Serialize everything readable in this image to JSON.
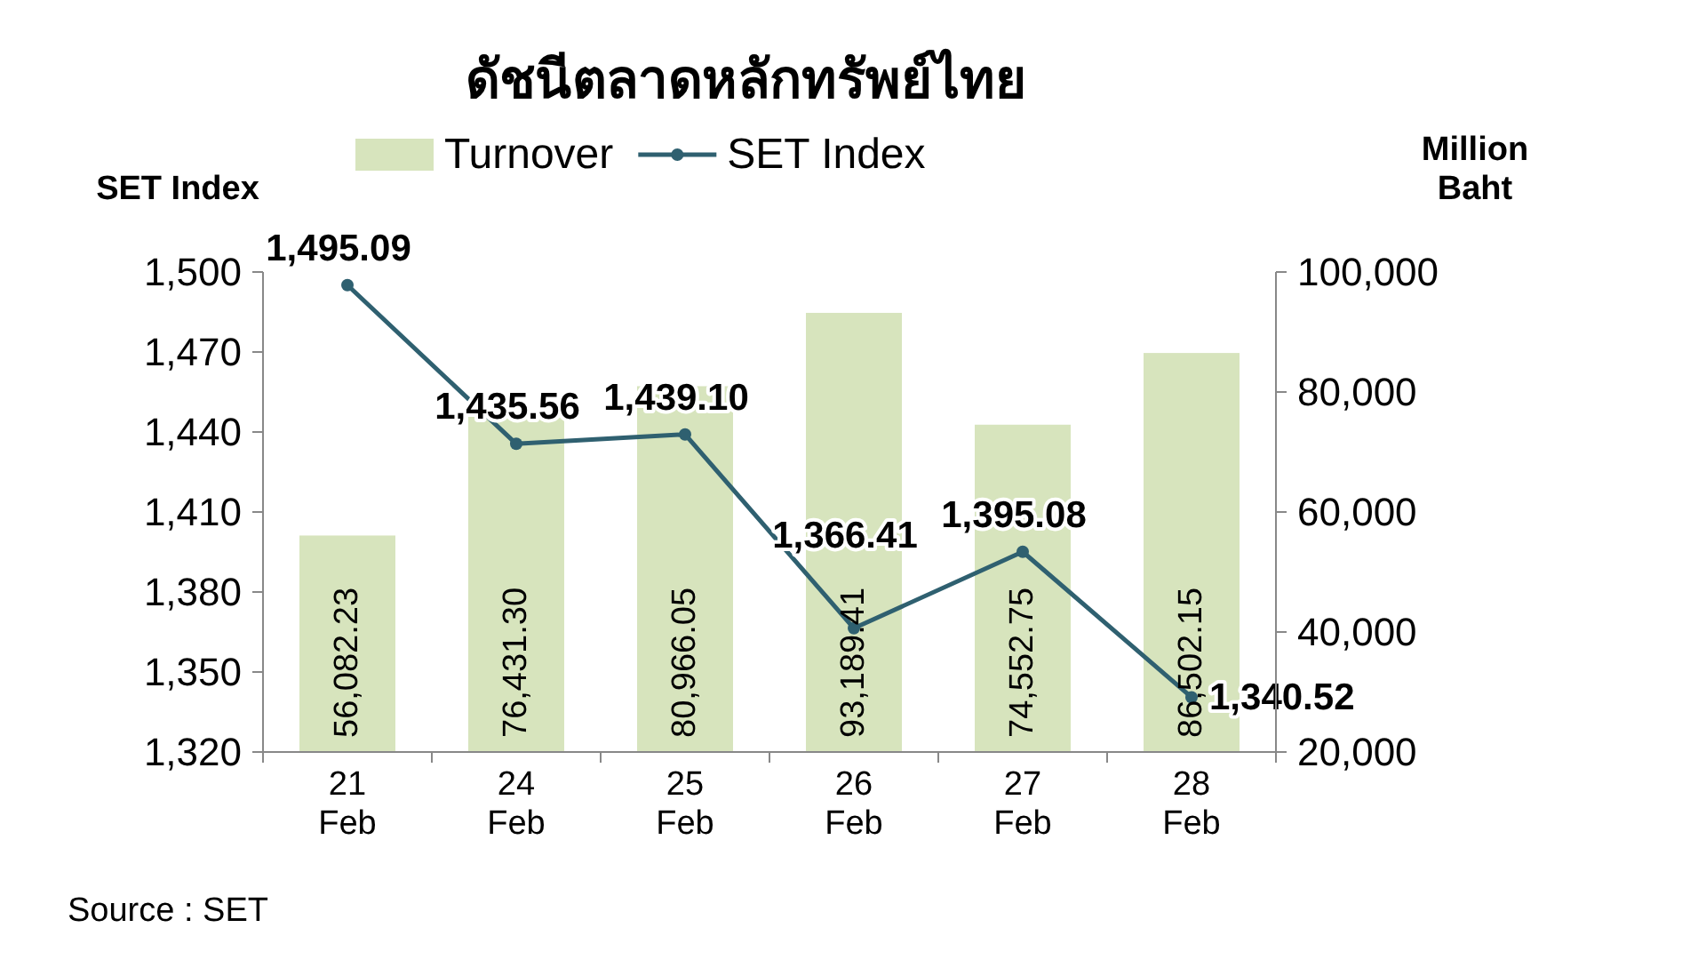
{
  "chart_data": {
    "type": "bar",
    "title": "ดัชนีตลาดหลักทรัพย์ไทย",
    "categories": [
      "21 Feb",
      "24 Feb",
      "25 Feb",
      "26 Feb",
      "27 Feb",
      "28 Feb"
    ],
    "ylabel": "SET Index",
    "y2label": "Million Baht",
    "series": [
      {
        "name": "Turnover",
        "type": "bar",
        "axis": "y2",
        "color": "#d7e4bd",
        "values": [
          56082.23,
          76431.3,
          80966.05,
          93189.41,
          74552.75,
          86502.15
        ],
        "value_labels": [
          "56,082.23",
          "76,431.30",
          "80,966.05",
          "93,189.41",
          "74,552.75",
          "86,502.15"
        ]
      },
      {
        "name": "SET Index",
        "type": "line",
        "color": "#2f6070",
        "marker": "circle",
        "values": [
          1495.09,
          1435.56,
          1439.1,
          1366.41,
          1395.08,
          1340.52
        ],
        "value_labels": [
          "1,495.09",
          "1,435.56",
          "1,439.10",
          "1,366.41",
          "1,395.08",
          "1,340.52"
        ]
      }
    ],
    "ylim": [
      1320,
      1500
    ],
    "yticks": [
      {
        "value": 1320,
        "label": "1,320"
      },
      {
        "value": 1350,
        "label": "1,350"
      },
      {
        "value": 1380,
        "label": "1,380"
      },
      {
        "value": 1410,
        "label": "1,410"
      },
      {
        "value": 1440,
        "label": "1,440"
      },
      {
        "value": 1470,
        "label": "1,470"
      },
      {
        "value": 1500,
        "label": "1,500"
      }
    ],
    "y2lim": [
      20000,
      100000
    ],
    "y2ticks": [
      {
        "value": 20000,
        "label": "20,000"
      },
      {
        "value": 40000,
        "label": "40,000"
      },
      {
        "value": 60000,
        "label": "60,000"
      },
      {
        "value": 80000,
        "label": "80,000"
      },
      {
        "value": 100000,
        "label": "100,000"
      }
    ],
    "legend": "top",
    "annotations": [
      "Source : SET"
    ]
  }
}
